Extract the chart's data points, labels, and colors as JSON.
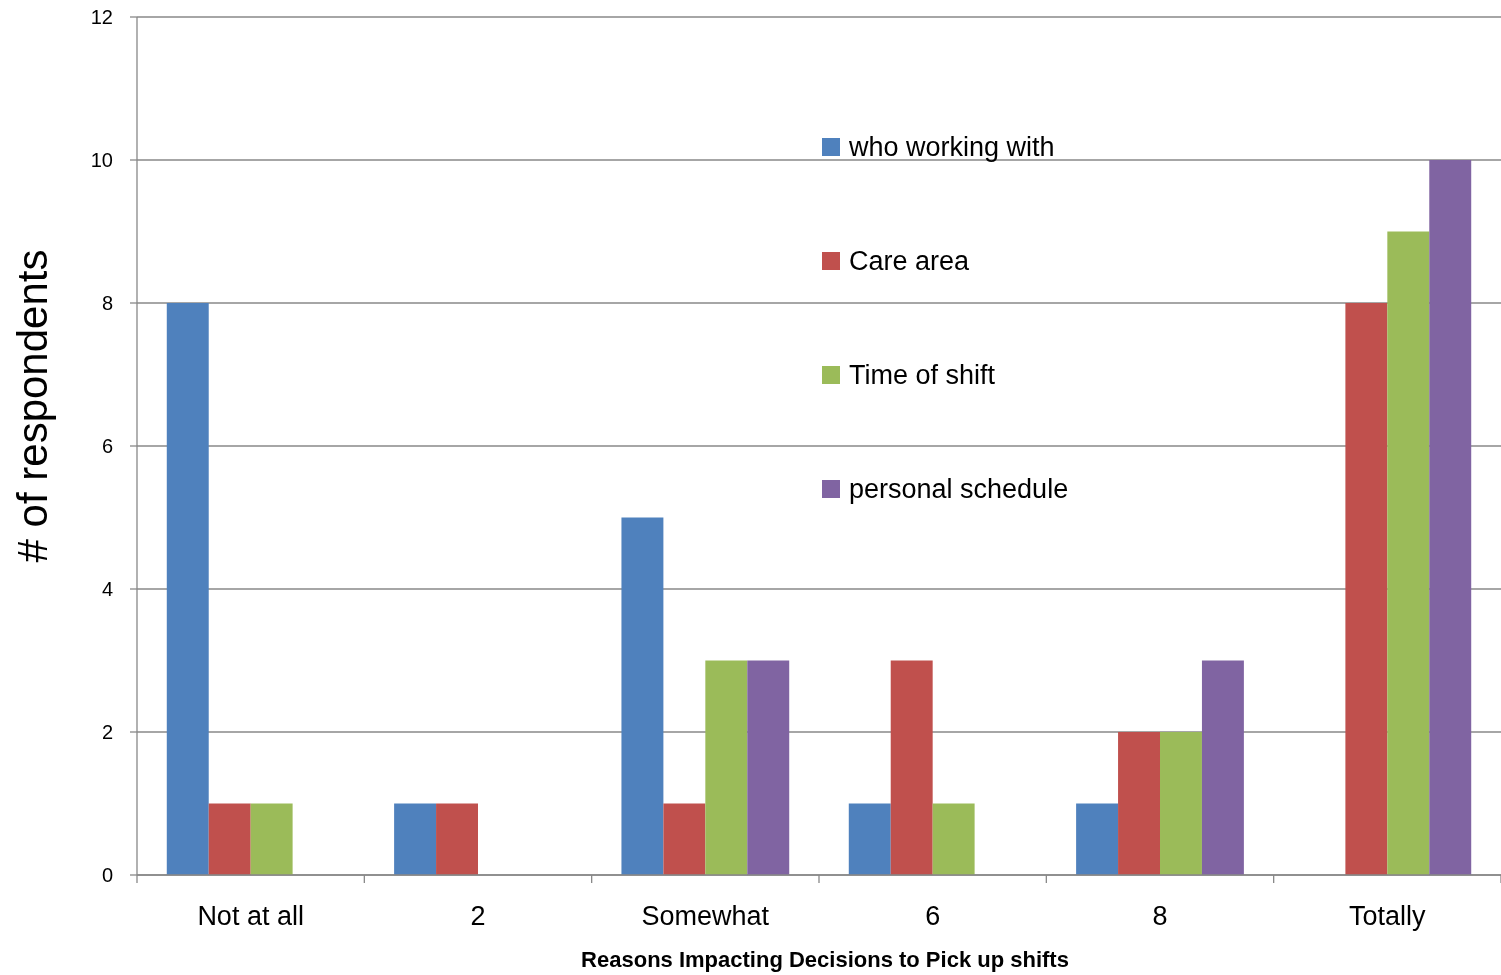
{
  "chart_data": {
    "type": "bar",
    "xlabel": "Reasons  Impacting Decisions to  Pick up shifts",
    "ylabel": "# of respondents",
    "categories": [
      "Not at all",
      "2",
      "Somewhat",
      "6",
      "8",
      "Totally"
    ],
    "series": [
      {
        "name": "who working with",
        "color": "#4f81bd",
        "values": [
          8,
          1,
          5,
          1,
          1,
          0
        ]
      },
      {
        "name": "Care area",
        "color": "#c0504d",
        "values": [
          1,
          1,
          1,
          3,
          2,
          8
        ]
      },
      {
        "name": "Time of shift",
        "color": "#9bbb59",
        "values": [
          1,
          0,
          3,
          1,
          2,
          9
        ]
      },
      {
        "name": "personal schedule",
        "color": "#8064a2",
        "values": [
          0,
          0,
          3,
          0,
          3,
          10
        ]
      }
    ],
    "ylim": [
      0,
      12
    ],
    "yticks": [
      0,
      2,
      4,
      6,
      8,
      10,
      12
    ],
    "grid": "y",
    "legend": "top"
  }
}
